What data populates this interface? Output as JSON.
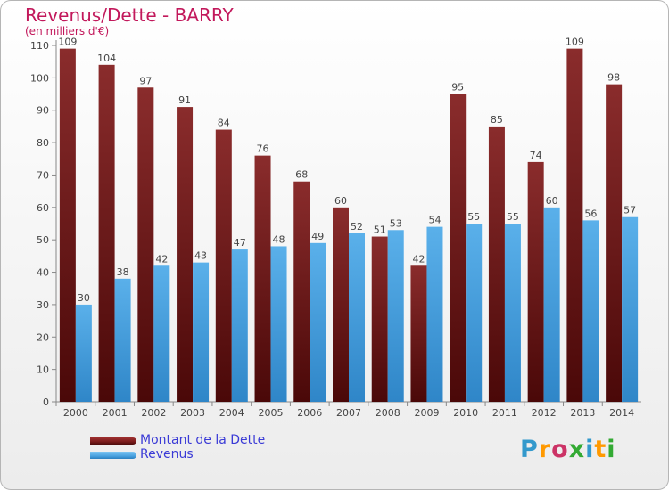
{
  "title": "Revenus/Dette - BARRY",
  "subtitle": "(en milliers d'€)",
  "colors": {
    "dette": "#7a1c1c",
    "revenus": "#4aa3e0",
    "title": "#c2185b",
    "legend_text": "#3a3ad6"
  },
  "chart_data": {
    "type": "bar",
    "categories": [
      "2000",
      "2001",
      "2002",
      "2003",
      "2004",
      "2005",
      "2006",
      "2007",
      "2008",
      "2009",
      "2010",
      "2011",
      "2012",
      "2013",
      "2014"
    ],
    "series": [
      {
        "name": "Montant de la Dette",
        "values": [
          109,
          104,
          97,
          91,
          84,
          76,
          68,
          60,
          51,
          42,
          95,
          85,
          74,
          109,
          98
        ]
      },
      {
        "name": "Revenus",
        "values": [
          30,
          38,
          42,
          43,
          47,
          48,
          49,
          52,
          53,
          54,
          55,
          55,
          60,
          56,
          57
        ]
      }
    ],
    "ylim": [
      0,
      110
    ],
    "yticks": [
      0,
      10,
      20,
      30,
      40,
      50,
      60,
      70,
      80,
      90,
      100,
      110
    ],
    "grid": false,
    "legend": "bottom-left"
  },
  "legend": {
    "items": [
      {
        "label": "Montant de la Dette"
      },
      {
        "label": "Revenus"
      }
    ]
  },
  "logo": {
    "letters": [
      "P",
      "r",
      "o",
      "x",
      "i",
      "t",
      "i"
    ],
    "colors": [
      "#3399cc",
      "#ff9900",
      "#cc3366",
      "#33aa33",
      "#3399cc",
      "#ff9900",
      "#33aa33"
    ]
  }
}
